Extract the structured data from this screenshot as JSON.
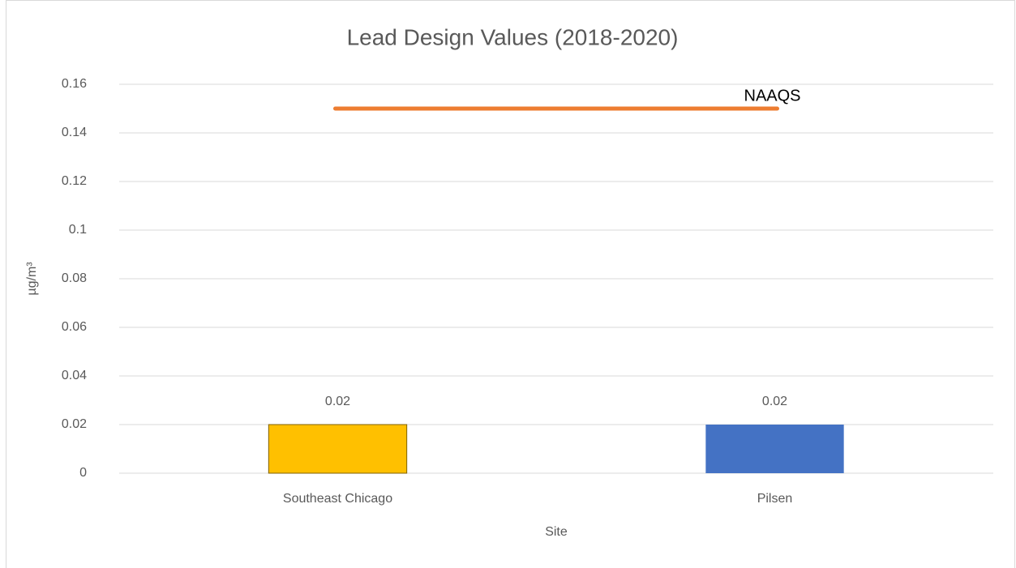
{
  "chart_data": {
    "type": "bar",
    "title": "Lead Design Values (2018-2020)",
    "x_label": "Site",
    "y_label": "µg/m³",
    "categories": [
      "Southeast Chicago",
      "Pilsen"
    ],
    "values": [
      0.02,
      0.02
    ],
    "colors": [
      "#FFC000",
      "#4472C4"
    ],
    "ylim": [
      0,
      0.16
    ],
    "yticks": [
      0,
      0.02,
      0.04,
      0.06,
      0.08,
      0.1,
      0.12,
      0.14,
      0.16
    ],
    "grid": true,
    "reference_line": {
      "label": "NAAQS",
      "value": 0.15,
      "color": "#ED7D31"
    }
  }
}
